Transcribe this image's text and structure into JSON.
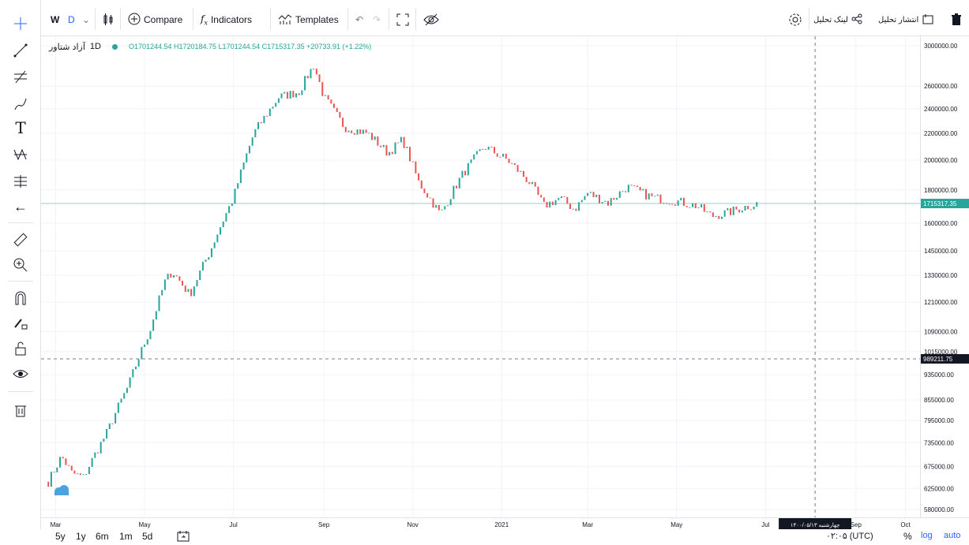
{
  "toolbar": {
    "interval_w": "W",
    "interval_d": "D",
    "compare_label": "Compare",
    "indicators_label": "Indicators",
    "templates_label": "Templates",
    "publish_label": "انتشار تحلیل",
    "link_label": "لینک تحلیل"
  },
  "legend": {
    "symbol": "آزاد شتاور",
    "interval": "1D",
    "ohlc": "O1701244.54 H1720184.75 L1701244.54 C1715317.35 +20733.91 (+1.22%)"
  },
  "price_axis": {
    "ticks": [
      "3000000.00",
      "2600000.00",
      "2400000.00",
      "2200000.00",
      "2000000.00",
      "1800000.00",
      "1600000.00",
      "1450000.00",
      "1330000.00",
      "1210000.00",
      "1090000.00",
      "1015000.00",
      "935000.00",
      "855000.00",
      "795000.00",
      "735000.00",
      "675000.00",
      "625000.00",
      "580000.00"
    ],
    "current_price_label": "1715317.35",
    "crosshair_price_label": "989211.75"
  },
  "time_axis": {
    "ticks": [
      "Mar",
      "May",
      "Jul",
      "Sep",
      "Nov",
      "2021",
      "Mar",
      "May",
      "Jul",
      "Sep",
      "Oct"
    ],
    "crosshair_date_label": "چهارشنبه ۱۴۰۰/۰۵/۱۳"
  },
  "bottom_bar": {
    "ranges": [
      "5y",
      "1y",
      "6m",
      "1m",
      "5d"
    ],
    "timezone": "۰۲:۰۵ (UTC)",
    "percent_label": "%",
    "log_label": "log",
    "auto_label": "auto"
  },
  "colors": {
    "up": "#26a69a",
    "down": "#ef5350",
    "accent": "#2962ff",
    "price_line": "#26a69a"
  },
  "chart_data": {
    "type": "candlestick",
    "series_points": [
      [
        "2020-02-25",
        640000
      ],
      [
        "2020-03-05",
        700000
      ],
      [
        "2020-03-12",
        660000
      ],
      [
        "2020-03-20",
        650000
      ],
      [
        "2020-04-05",
        760000
      ],
      [
        "2020-04-20",
        900000
      ],
      [
        "2020-05-05",
        1100000
      ],
      [
        "2020-05-15",
        1300000
      ],
      [
        "2020-05-20",
        1350000
      ],
      [
        "2020-06-01",
        1240000
      ],
      [
        "2020-06-15",
        1450000
      ],
      [
        "2020-07-01",
        1750000
      ],
      [
        "2020-07-15",
        2200000
      ],
      [
        "2020-08-01",
        2500000
      ],
      [
        "2020-08-15",
        2550000
      ],
      [
        "2020-08-25",
        2800000
      ],
      [
        "2020-09-01",
        2500000
      ],
      [
        "2020-09-15",
        2250000
      ],
      [
        "2020-10-01",
        2200000
      ],
      [
        "2020-10-15",
        2050000
      ],
      [
        "2020-10-25",
        2150000
      ],
      [
        "2020-11-05",
        1850000
      ],
      [
        "2020-11-20",
        1650000
      ],
      [
        "2020-12-05",
        1900000
      ],
      [
        "2020-12-20",
        2100000
      ],
      [
        "2021-01-05",
        2000000
      ],
      [
        "2021-01-20",
        1850000
      ],
      [
        "2021-01-30",
        1700000
      ],
      [
        "2021-02-10",
        1750000
      ],
      [
        "2021-02-20",
        1680000
      ],
      [
        "2021-03-01",
        1780000
      ],
      [
        "2021-03-15",
        1720000
      ],
      [
        "2021-03-28",
        1820000
      ],
      [
        "2021-04-15",
        1750000
      ],
      [
        "2021-05-01",
        1730000
      ],
      [
        "2021-05-15",
        1700000
      ],
      [
        "2021-05-25",
        1640000
      ],
      [
        "2021-06-05",
        1660000
      ],
      [
        "2021-06-15",
        1690000
      ],
      [
        "2021-06-25",
        1715317
      ]
    ],
    "ylim": [
      580000,
      3000000
    ],
    "log_scale": true,
    "last_close": 1715317.35,
    "grid": true
  }
}
